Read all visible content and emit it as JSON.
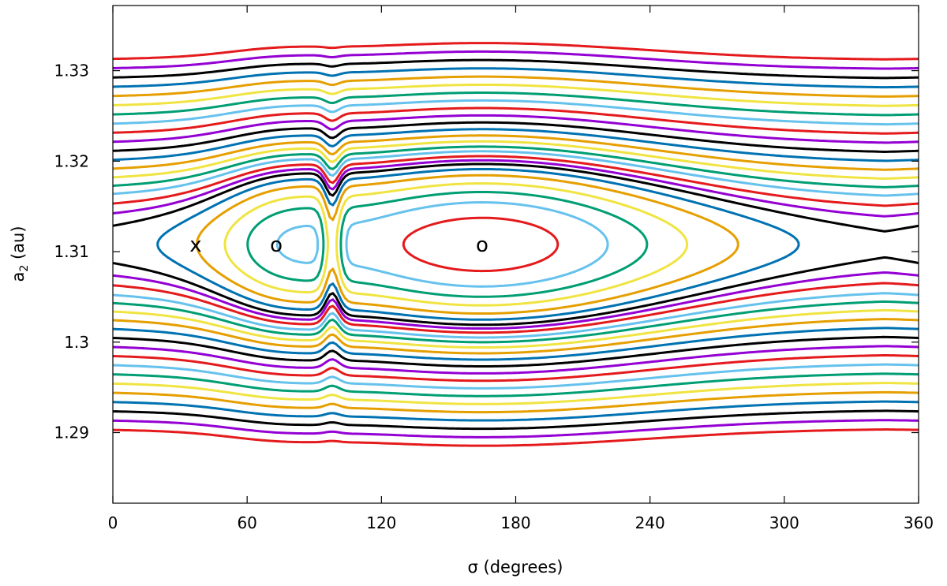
{
  "chart_data": {
    "type": "line",
    "plot_kind": "level-curve phase portrait",
    "xlabel": "σ (degrees)",
    "ylabel": "a2 (au)",
    "ylabel_parts": {
      "base": "a",
      "sub": "2",
      "rest": " (au)"
    },
    "xlim": [
      0,
      360
    ],
    "ylim": [
      1.2822,
      1.3372
    ],
    "xticks": [
      0,
      60,
      120,
      180,
      240,
      300,
      360
    ],
    "yticks": [
      1.29,
      1.3,
      1.31,
      1.32,
      1.33
    ],
    "xtick_labels": [
      "0",
      "60",
      "120",
      "180",
      "240",
      "300",
      "360"
    ],
    "ytick_labels": [
      "1.29",
      "1.3",
      "1.31",
      "1.32",
      "1.33"
    ],
    "grid": false,
    "legend": "none",
    "color_cycle": [
      "#e41a1c",
      "#66c2ed",
      "#009e73",
      "#f0e442",
      "#e69f00",
      "#0072b2",
      "#000000",
      "#9400d3"
    ],
    "stationary_points": [
      {
        "label": "x",
        "sigma": 37,
        "a2": 1.3108
      },
      {
        "label": "o",
        "sigma": 73,
        "a2": 1.3108
      },
      {
        "label": "o",
        "sigma": 165,
        "a2": 1.3108
      }
    ],
    "level_model": {
      "center_a2": 1.3108,
      "a2_scale": 0.00465,
      "resonance_sigma": 98,
      "resonance_width": 4.5,
      "resonance_strength": 1.6,
      "island_center_sigma": 165,
      "island_width": 100,
      "island_depth": 3.7,
      "side_center_sigma": 73,
      "side_width": 30,
      "side_depth": 1.1
    },
    "levels": [
      -3.3,
      -2.7,
      -2.15,
      -1.6,
      -1.0,
      -0.5,
      -0.05,
      0.3,
      0.7,
      1.2,
      1.7,
      2.3,
      3.0,
      3.8,
      4.7,
      5.7,
      6.8,
      8.0,
      9.3,
      10.7,
      12.2,
      13.8,
      15.5,
      17.3,
      19.2
    ]
  }
}
